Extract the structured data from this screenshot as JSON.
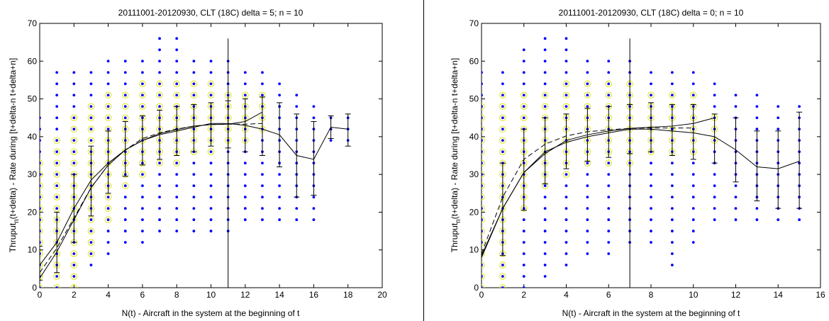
{
  "colors": {
    "points": "#0000ff",
    "circled": "#e8e840",
    "lines": "#000000",
    "axes": "#000000",
    "background": "#ffffff"
  },
  "point_levels": [
    0,
    3,
    6,
    9,
    12,
    15,
    18,
    21,
    24,
    27,
    30,
    33,
    36,
    39,
    42,
    45,
    48,
    51,
    54,
    57,
    60,
    63,
    66
  ],
  "chart_data": [
    {
      "type": "scatter",
      "title": "20111001-20120930, CLT (18C) delta = 5; n = 10",
      "xlabel": "N(t) - Aircraft in the system at the beginning of t",
      "ylabel_parts": [
        "Thruput",
        "n",
        "(t+delta) - Rate during [t+delta-n t+delta+n]"
      ],
      "xlim": [
        0,
        20
      ],
      "ylim": [
        0,
        70
      ],
      "xticks": [
        0,
        2,
        4,
        6,
        8,
        10,
        12,
        14,
        16,
        18,
        20
      ],
      "yticks": [
        0,
        10,
        20,
        30,
        40,
        50,
        60,
        70
      ],
      "grid": false,
      "vertical_line_x": 11,
      "point_range": [
        [
          0,
          0,
          45
        ],
        [
          1,
          0,
          57
        ],
        [
          2,
          3,
          57
        ],
        [
          3,
          6,
          57
        ],
        [
          4,
          9,
          60
        ],
        [
          5,
          12,
          60
        ],
        [
          6,
          12,
          60
        ],
        [
          7,
          15,
          66
        ],
        [
          8,
          15,
          66
        ],
        [
          9,
          15,
          60
        ],
        [
          10,
          15,
          60
        ],
        [
          11,
          15,
          60
        ],
        [
          12,
          18,
          57
        ],
        [
          13,
          18,
          57
        ],
        [
          14,
          18,
          54
        ],
        [
          15,
          18,
          51
        ],
        [
          16,
          18,
          48
        ],
        [
          17,
          39,
          45
        ],
        [
          18,
          39,
          45
        ]
      ],
      "circled_range": [
        [
          0,
          0,
          33
        ],
        [
          1,
          0,
          39
        ],
        [
          2,
          0,
          45
        ],
        [
          3,
          9,
          48
        ],
        [
          4,
          18,
          51
        ],
        [
          5,
          27,
          51
        ],
        [
          6,
          30,
          54
        ],
        [
          7,
          33,
          54
        ],
        [
          8,
          33,
          54
        ],
        [
          9,
          36,
          54
        ],
        [
          10,
          36,
          54
        ],
        [
          11,
          39,
          51
        ],
        [
          12,
          39,
          51
        ],
        [
          13,
          42,
          51
        ]
      ],
      "mean_line": {
        "x": [
          0,
          1,
          2,
          3,
          4,
          5,
          6,
          7,
          8,
          9,
          10,
          11,
          12,
          13,
          14,
          15,
          16,
          17,
          18
        ],
        "y": [
          6,
          12,
          21,
          28.5,
          33,
          36.5,
          39,
          40.5,
          41.5,
          42.5,
          43.5,
          43.5,
          43,
          42,
          40.5,
          35,
          34,
          42.5,
          42
        ]
      },
      "fit_line_dashed": {
        "x": [
          0,
          1,
          2,
          3,
          4,
          5,
          6,
          7,
          8,
          9,
          10,
          11,
          12,
          13
        ],
        "y": [
          4,
          10.5,
          18.5,
          26.5,
          32.5,
          36.5,
          39.5,
          41,
          42,
          42.8,
          43.2,
          43.3,
          43.3,
          43.5
        ]
      },
      "fit_line_solid": {
        "x": [
          0,
          1,
          2,
          3,
          4,
          5,
          6,
          7,
          8,
          9,
          10,
          11,
          12,
          13
        ],
        "y": [
          2.5,
          9.5,
          18,
          26.5,
          32.5,
          36.5,
          39,
          40.8,
          41.9,
          42.8,
          43.2,
          43.3,
          44,
          46.5
        ]
      },
      "error_bars": [
        {
          "x": 0,
          "low": 2,
          "high": 11
        },
        {
          "x": 1,
          "low": 4,
          "high": 20
        },
        {
          "x": 2,
          "low": 12,
          "high": 30
        },
        {
          "x": 3,
          "low": 19,
          "high": 37.5
        },
        {
          "x": 4,
          "low": 25,
          "high": 41.5
        },
        {
          "x": 5,
          "low": 29.5,
          "high": 44
        },
        {
          "x": 6,
          "low": 32.5,
          "high": 45.5
        },
        {
          "x": 7,
          "low": 34,
          "high": 47
        },
        {
          "x": 8,
          "low": 35,
          "high": 48
        },
        {
          "x": 9,
          "low": 36,
          "high": 48.5
        },
        {
          "x": 10,
          "low": 37.5,
          "high": 49
        },
        {
          "x": 11,
          "low": 37,
          "high": 49.5
        },
        {
          "x": 12,
          "low": 36,
          "high": 50
        },
        {
          "x": 13,
          "low": 35,
          "high": 50.5
        },
        {
          "x": 14,
          "low": 32,
          "high": 49
        },
        {
          "x": 15,
          "low": 24,
          "high": 46
        },
        {
          "x": 16,
          "low": 24.5,
          "high": 44
        },
        {
          "x": 17,
          "low": 39.5,
          "high": 45.5
        },
        {
          "x": 18,
          "low": 37.5,
          "high": 46
        }
      ]
    },
    {
      "type": "scatter",
      "title": "20111001-20120930, CLT (18C) delta = 0; n = 10",
      "xlabel": "N(t) - Aircraft in the system at the beginning of t",
      "ylabel_parts": [
        "Thruput",
        "n",
        "(t+delta) - Rate during [t+delta-n t+delta+n]"
      ],
      "xlim": [
        0,
        16
      ],
      "ylim": [
        0,
        70
      ],
      "xticks": [
        0,
        2,
        4,
        6,
        8,
        10,
        12,
        14,
        16
      ],
      "yticks": [
        0,
        10,
        20,
        30,
        40,
        50,
        60,
        70
      ],
      "grid": false,
      "vertical_line_x": 7,
      "point_range": [
        [
          0,
          0,
          57
        ],
        [
          1,
          0,
          57
        ],
        [
          2,
          0,
          63
        ],
        [
          3,
          3,
          66
        ],
        [
          4,
          6,
          66
        ],
        [
          5,
          9,
          60
        ],
        [
          6,
          9,
          60
        ],
        [
          7,
          12,
          60
        ],
        [
          8,
          12,
          57
        ],
        [
          9,
          6,
          57
        ],
        [
          10,
          12,
          57
        ],
        [
          11,
          18,
          54
        ],
        [
          12,
          18,
          51
        ],
        [
          13,
          18,
          51
        ],
        [
          14,
          18,
          48
        ],
        [
          15,
          18,
          48
        ]
      ],
      "circled_range": [
        [
          0,
          0,
          48
        ],
        [
          1,
          0,
          51
        ],
        [
          2,
          21,
          51
        ],
        [
          3,
          27,
          51
        ],
        [
          4,
          30,
          54
        ],
        [
          5,
          33,
          54
        ],
        [
          6,
          33,
          54
        ],
        [
          7,
          33,
          54
        ],
        [
          8,
          36,
          51
        ],
        [
          9,
          36,
          51
        ],
        [
          10,
          36,
          51
        ],
        [
          11,
          39,
          45
        ]
      ],
      "mean_line": {
        "x": [
          0,
          1,
          2,
          3,
          4,
          5,
          6,
          7,
          8,
          9,
          10,
          11,
          12,
          13,
          14,
          15
        ],
        "y": [
          8.5,
          21,
          30.5,
          36,
          38.5,
          40,
          41,
          42,
          42,
          41.5,
          41,
          40,
          36.5,
          32,
          31.5,
          33.5
        ]
      },
      "fit_line_dashed": {
        "x": [
          0,
          1,
          2,
          3,
          4,
          5,
          6,
          7,
          8,
          9,
          10
        ],
        "y": [
          9,
          24,
          34,
          38,
          40.2,
          41.3,
          41.8,
          42.2,
          42.3,
          42.3,
          42.3
        ]
      },
      "fit_line_solid": {
        "x": [
          0,
          1,
          2,
          3,
          4,
          5,
          6,
          7,
          8,
          9,
          10,
          11
        ],
        "y": [
          8,
          21,
          30.5,
          35.5,
          39,
          40.5,
          41.5,
          42.2,
          42.5,
          42.8,
          43.5,
          45
        ]
      },
      "error_bars": [
        {
          "x": 1,
          "low": 8.5,
          "high": 33
        },
        {
          "x": 2,
          "low": 20.5,
          "high": 42
        },
        {
          "x": 3,
          "low": 27.5,
          "high": 45
        },
        {
          "x": 4,
          "low": 31.5,
          "high": 46
        },
        {
          "x": 5,
          "low": 33.5,
          "high": 47.5
        },
        {
          "x": 6,
          "low": 34.5,
          "high": 48
        },
        {
          "x": 7,
          "low": 35.5,
          "high": 48.5
        },
        {
          "x": 8,
          "low": 36,
          "high": 49
        },
        {
          "x": 9,
          "low": 35,
          "high": 48.5
        },
        {
          "x": 10,
          "low": 34,
          "high": 48.5
        },
        {
          "x": 11,
          "low": 33,
          "high": 46
        },
        {
          "x": 12,
          "low": 28,
          "high": 45
        },
        {
          "x": 13,
          "low": 23,
          "high": 41.5
        },
        {
          "x": 14,
          "low": 21,
          "high": 41.5
        },
        {
          "x": 15,
          "low": 21,
          "high": 46.5
        }
      ]
    }
  ]
}
